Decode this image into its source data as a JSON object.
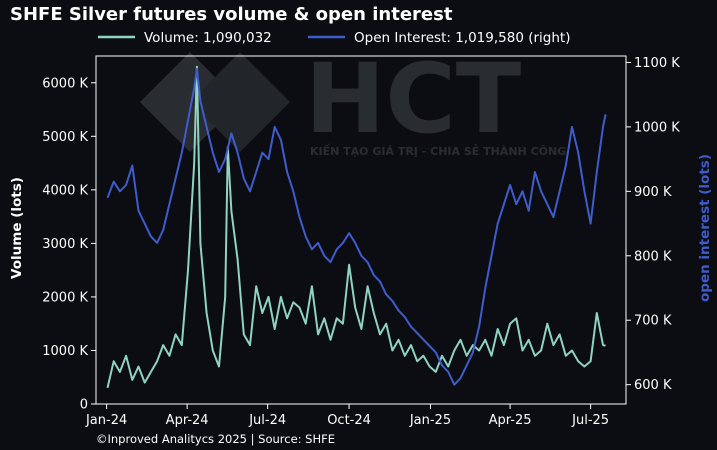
{
  "chart_data": {
    "type": "line",
    "title": "SHFE Silver futures volume & open interest",
    "footer": "©Inproved Analitycs 2025 | Source: SHFE",
    "watermark": {
      "logo_text": "HCT",
      "tagline": "KIẾN TẠO GIÁ TRỊ - CHIA SẺ THÀNH CÔNG"
    },
    "xlim": [
      "2023-12-20",
      "2025-08-10"
    ],
    "x_ticks": [
      {
        "date": "2024-01-01",
        "label": "Jan-24"
      },
      {
        "date": "2024-04-01",
        "label": "Apr-24"
      },
      {
        "date": "2024-07-01",
        "label": "Jul-24"
      },
      {
        "date": "2024-10-01",
        "label": "Oct-24"
      },
      {
        "date": "2025-01-01",
        "label": "Jan-25"
      },
      {
        "date": "2025-04-01",
        "label": "Apr-25"
      },
      {
        "date": "2025-07-01",
        "label": "Jul-25"
      }
    ],
    "y_left": {
      "label": "Volume (lots)",
      "lim": [
        0,
        6500000
      ],
      "ticks": [
        {
          "value": 0,
          "label": "0"
        },
        {
          "value": 1000000,
          "label": "1000 K"
        },
        {
          "value": 2000000,
          "label": "2000 K"
        },
        {
          "value": 3000000,
          "label": "3000 K"
        },
        {
          "value": 4000000,
          "label": "4000 K"
        },
        {
          "value": 5000000,
          "label": "5000 K"
        },
        {
          "value": 6000000,
          "label": "6000 K"
        }
      ]
    },
    "y_right": {
      "label": "open interest (lots)",
      "lim": [
        570000,
        1110000
      ],
      "ticks": [
        {
          "value": 600000,
          "label": "600 K"
        },
        {
          "value": 700000,
          "label": "700 K"
        },
        {
          "value": 800000,
          "label": "800 K"
        },
        {
          "value": 900000,
          "label": "900 K"
        },
        {
          "value": 1000000,
          "label": "1000 K"
        },
        {
          "value": 1100000,
          "label": "1100 K"
        }
      ]
    },
    "series": [
      {
        "name": "Volume: 1,090,032",
        "axis": "left",
        "color": "#8fd3c0",
        "points": [
          [
            "2024-01-02",
            300000
          ],
          [
            "2024-01-09",
            800000
          ],
          [
            "2024-01-16",
            600000
          ],
          [
            "2024-01-23",
            900000
          ],
          [
            "2024-01-30",
            450000
          ],
          [
            "2024-02-06",
            700000
          ],
          [
            "2024-02-13",
            400000
          ],
          [
            "2024-02-20",
            600000
          ],
          [
            "2024-02-27",
            800000
          ],
          [
            "2024-03-05",
            1100000
          ],
          [
            "2024-03-12",
            900000
          ],
          [
            "2024-03-19",
            1300000
          ],
          [
            "2024-03-26",
            1100000
          ],
          [
            "2024-04-02",
            2500000
          ],
          [
            "2024-04-09",
            4500000
          ],
          [
            "2024-04-12",
            6300000
          ],
          [
            "2024-04-16",
            3000000
          ],
          [
            "2024-04-23",
            1700000
          ],
          [
            "2024-04-30",
            1000000
          ],
          [
            "2024-05-07",
            700000
          ],
          [
            "2024-05-14",
            2000000
          ],
          [
            "2024-05-17",
            4800000
          ],
          [
            "2024-05-21",
            3600000
          ],
          [
            "2024-05-28",
            2700000
          ],
          [
            "2024-06-04",
            1300000
          ],
          [
            "2024-06-11",
            1100000
          ],
          [
            "2024-06-18",
            2200000
          ],
          [
            "2024-06-25",
            1700000
          ],
          [
            "2024-07-02",
            2000000
          ],
          [
            "2024-07-09",
            1400000
          ],
          [
            "2024-07-16",
            2000000
          ],
          [
            "2024-07-23",
            1600000
          ],
          [
            "2024-07-30",
            1900000
          ],
          [
            "2024-08-06",
            1800000
          ],
          [
            "2024-08-13",
            1500000
          ],
          [
            "2024-08-20",
            2200000
          ],
          [
            "2024-08-27",
            1300000
          ],
          [
            "2024-09-03",
            1600000
          ],
          [
            "2024-09-10",
            1200000
          ],
          [
            "2024-09-17",
            1600000
          ],
          [
            "2024-09-24",
            1500000
          ],
          [
            "2024-10-01",
            2600000
          ],
          [
            "2024-10-08",
            1800000
          ],
          [
            "2024-10-15",
            1400000
          ],
          [
            "2024-10-22",
            2200000
          ],
          [
            "2024-10-29",
            1700000
          ],
          [
            "2024-11-05",
            1300000
          ],
          [
            "2024-11-12",
            1500000
          ],
          [
            "2024-11-19",
            1000000
          ],
          [
            "2024-11-26",
            1200000
          ],
          [
            "2024-12-03",
            900000
          ],
          [
            "2024-12-10",
            1100000
          ],
          [
            "2024-12-17",
            800000
          ],
          [
            "2024-12-24",
            900000
          ],
          [
            "2024-12-31",
            700000
          ],
          [
            "2025-01-07",
            600000
          ],
          [
            "2025-01-14",
            900000
          ],
          [
            "2025-01-21",
            700000
          ],
          [
            "2025-01-28",
            1000000
          ],
          [
            "2025-02-04",
            1200000
          ],
          [
            "2025-02-11",
            900000
          ],
          [
            "2025-02-18",
            1100000
          ],
          [
            "2025-02-25",
            1000000
          ],
          [
            "2025-03-04",
            1200000
          ],
          [
            "2025-03-11",
            900000
          ],
          [
            "2025-03-18",
            1400000
          ],
          [
            "2025-03-25",
            1100000
          ],
          [
            "2025-04-01",
            1500000
          ],
          [
            "2025-04-08",
            1600000
          ],
          [
            "2025-04-15",
            1000000
          ],
          [
            "2025-04-22",
            1200000
          ],
          [
            "2025-04-29",
            900000
          ],
          [
            "2025-05-06",
            1000000
          ],
          [
            "2025-05-13",
            1500000
          ],
          [
            "2025-05-20",
            1100000
          ],
          [
            "2025-05-27",
            1300000
          ],
          [
            "2025-06-03",
            900000
          ],
          [
            "2025-06-10",
            1000000
          ],
          [
            "2025-06-17",
            800000
          ],
          [
            "2025-06-24",
            700000
          ],
          [
            "2025-07-01",
            800000
          ],
          [
            "2025-07-08",
            1700000
          ],
          [
            "2025-07-15",
            1100000
          ],
          [
            "2025-07-18",
            1090032
          ]
        ]
      },
      {
        "name": "Open Interest: 1,019,580 (right)",
        "axis": "right",
        "color": "#3f5ccc",
        "points": [
          [
            "2024-01-02",
            890000
          ],
          [
            "2024-01-09",
            915000
          ],
          [
            "2024-01-16",
            900000
          ],
          [
            "2024-01-23",
            910000
          ],
          [
            "2024-01-30",
            940000
          ],
          [
            "2024-02-06",
            870000
          ],
          [
            "2024-02-13",
            850000
          ],
          [
            "2024-02-20",
            830000
          ],
          [
            "2024-02-27",
            820000
          ],
          [
            "2024-03-05",
            840000
          ],
          [
            "2024-03-12",
            880000
          ],
          [
            "2024-03-19",
            920000
          ],
          [
            "2024-03-26",
            960000
          ],
          [
            "2024-04-02",
            1010000
          ],
          [
            "2024-04-09",
            1060000
          ],
          [
            "2024-04-12",
            1090000
          ],
          [
            "2024-04-16",
            1040000
          ],
          [
            "2024-04-23",
            1000000
          ],
          [
            "2024-04-30",
            960000
          ],
          [
            "2024-05-07",
            930000
          ],
          [
            "2024-05-14",
            950000
          ],
          [
            "2024-05-21",
            990000
          ],
          [
            "2024-05-28",
            960000
          ],
          [
            "2024-06-04",
            920000
          ],
          [
            "2024-06-11",
            900000
          ],
          [
            "2024-06-18",
            930000
          ],
          [
            "2024-06-25",
            960000
          ],
          [
            "2024-07-02",
            950000
          ],
          [
            "2024-07-09",
            1000000
          ],
          [
            "2024-07-16",
            980000
          ],
          [
            "2024-07-23",
            930000
          ],
          [
            "2024-07-30",
            900000
          ],
          [
            "2024-08-06",
            860000
          ],
          [
            "2024-08-13",
            830000
          ],
          [
            "2024-08-20",
            810000
          ],
          [
            "2024-08-27",
            820000
          ],
          [
            "2024-09-03",
            800000
          ],
          [
            "2024-09-10",
            790000
          ],
          [
            "2024-09-17",
            810000
          ],
          [
            "2024-09-24",
            820000
          ],
          [
            "2024-10-01",
            835000
          ],
          [
            "2024-10-08",
            820000
          ],
          [
            "2024-10-15",
            800000
          ],
          [
            "2024-10-22",
            790000
          ],
          [
            "2024-10-29",
            770000
          ],
          [
            "2024-11-05",
            760000
          ],
          [
            "2024-11-12",
            740000
          ],
          [
            "2024-11-19",
            730000
          ],
          [
            "2024-11-26",
            715000
          ],
          [
            "2024-12-03",
            705000
          ],
          [
            "2024-12-10",
            690000
          ],
          [
            "2024-12-17",
            680000
          ],
          [
            "2024-12-24",
            670000
          ],
          [
            "2024-12-31",
            660000
          ],
          [
            "2025-01-07",
            650000
          ],
          [
            "2025-01-14",
            630000
          ],
          [
            "2025-01-21",
            620000
          ],
          [
            "2025-01-28",
            600000
          ],
          [
            "2025-02-04",
            610000
          ],
          [
            "2025-02-11",
            630000
          ],
          [
            "2025-02-18",
            650000
          ],
          [
            "2025-02-25",
            690000
          ],
          [
            "2025-03-04",
            750000
          ],
          [
            "2025-03-11",
            800000
          ],
          [
            "2025-03-18",
            850000
          ],
          [
            "2025-03-25",
            880000
          ],
          [
            "2025-04-01",
            910000
          ],
          [
            "2025-04-08",
            880000
          ],
          [
            "2025-04-15",
            900000
          ],
          [
            "2025-04-22",
            870000
          ],
          [
            "2025-04-29",
            930000
          ],
          [
            "2025-05-06",
            900000
          ],
          [
            "2025-05-13",
            880000
          ],
          [
            "2025-05-20",
            860000
          ],
          [
            "2025-05-27",
            900000
          ],
          [
            "2025-06-03",
            940000
          ],
          [
            "2025-06-10",
            1000000
          ],
          [
            "2025-06-17",
            960000
          ],
          [
            "2025-06-24",
            900000
          ],
          [
            "2025-07-01",
            850000
          ],
          [
            "2025-07-08",
            930000
          ],
          [
            "2025-07-15",
            1000000
          ],
          [
            "2025-07-18",
            1019580
          ]
        ]
      }
    ]
  }
}
